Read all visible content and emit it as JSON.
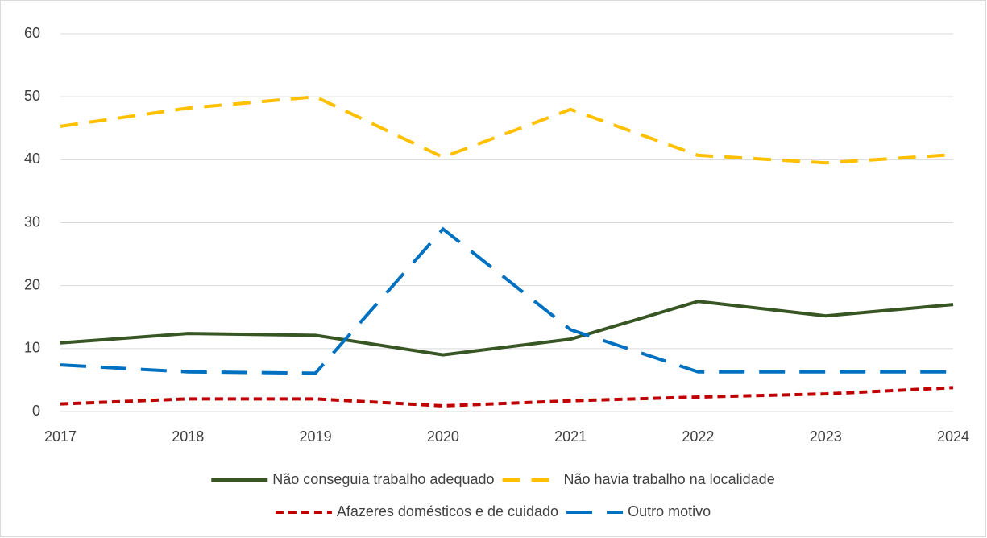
{
  "chart_data": {
    "type": "line",
    "categories": [
      "2017",
      "2018",
      "2019",
      "2020",
      "2021",
      "2022",
      "2023",
      "2024"
    ],
    "series": [
      {
        "name": "Não conseguia trabalho adequado",
        "color": "#375623",
        "dash": "solid",
        "values": [
          10.9,
          12.4,
          12.1,
          9.0,
          11.5,
          17.5,
          15.2,
          17.0
        ]
      },
      {
        "name": "Não havia trabalho na localidade",
        "color": "#ffc000",
        "dash": "dash",
        "values": [
          45.3,
          48.2,
          50.0,
          40.4,
          48.0,
          40.7,
          39.5,
          40.8
        ]
      },
      {
        "name": "Afazeres domésticos e de cuidado",
        "color": "#c00000",
        "dash": "short-dash",
        "values": [
          1.2,
          2.0,
          2.0,
          0.9,
          1.7,
          2.3,
          2.8,
          3.8
        ]
      },
      {
        "name": "Outro motivo",
        "color": "#0070c0",
        "dash": "long-dash",
        "values": [
          7.4,
          6.3,
          6.1,
          29.0,
          13.0,
          6.3,
          6.3,
          6.3
        ]
      }
    ],
    "ylim": [
      0,
      60
    ],
    "yticks": [
      0,
      10,
      20,
      30,
      40,
      50,
      60
    ],
    "grid": true,
    "legend": "bottom"
  }
}
